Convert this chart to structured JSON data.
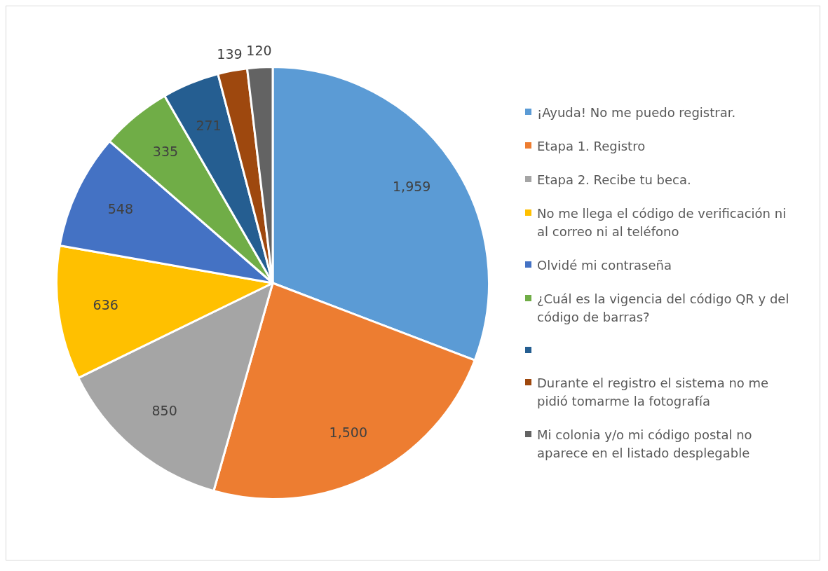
{
  "chart_data": {
    "type": "pie",
    "categories": [
      "¡Ayuda! No me puedo registrar.",
      "Etapa 1. Registro",
      "Etapa 2. Recibe tu beca.",
      "No me llega el código de verificación ni al correo ni al teléfono",
      "Olvidé mi contraseña",
      "¿Cuál es la vigencia del código QR y del código de barras?",
      null,
      "Durante el registro el sistema no me pidió tomarme la fotografía",
      "Mi colonia y/o mi código postal no aparece en el listado desplegable"
    ],
    "values": [
      1959,
      1500,
      850,
      636,
      548,
      335,
      271,
      139,
      120
    ],
    "colors": [
      "#5b9bd5",
      "#ed7d31",
      "#a5a5a5",
      "#ffc000",
      "#4472c4",
      "#70ad47",
      "#255e91",
      "#9e480e",
      "#636363"
    ],
    "value_labels": [
      "1,959",
      "1,500",
      "850",
      "636",
      "548",
      "335",
      "271",
      "139",
      "120"
    ],
    "legend": "right"
  }
}
